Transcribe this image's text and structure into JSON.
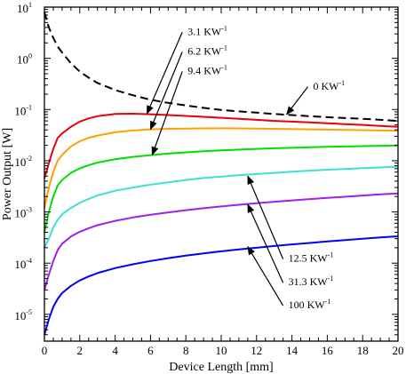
{
  "chart_data": {
    "type": "line",
    "title": "",
    "xlabel": "Device Length [mm]",
    "ylabel": "Power Output [W]",
    "xlim": [
      0,
      20
    ],
    "ylim": [
      3e-06,
      10
    ],
    "yscale": "log",
    "x_ticks": [
      0,
      2,
      4,
      6,
      8,
      10,
      12,
      14,
      16,
      18,
      20
    ],
    "y_ticks": [
      {
        "value": 1e-05,
        "base": "10",
        "exp": "-5"
      },
      {
        "value": 0.0001,
        "base": "10",
        "exp": "-4"
      },
      {
        "value": 0.001,
        "base": "10",
        "exp": "-3"
      },
      {
        "value": 0.01,
        "base": "10",
        "exp": "-2"
      },
      {
        "value": 0.1,
        "base": "10",
        "exp": "-1"
      },
      {
        "value": 1,
        "base": "10",
        "exp": "0"
      },
      {
        "value": 10,
        "base": "10",
        "exp": "1"
      }
    ],
    "grid": false,
    "x": [
      0,
      0.25,
      0.5,
      0.75,
      1,
      1.5,
      2,
      2.5,
      3,
      4,
      5,
      6,
      7,
      8,
      9,
      10,
      11,
      12,
      13,
      14,
      15,
      16,
      17,
      18,
      19,
      20
    ],
    "series": [
      {
        "key": "s0",
        "dash": true,
        "color": "#000000",
        "values": [
          8.0,
          4.0,
          2.5,
          1.7,
          1.3,
          0.8,
          0.55,
          0.42,
          0.33,
          0.24,
          0.19,
          0.155,
          0.135,
          0.12,
          0.108,
          0.098,
          0.092,
          0.087,
          0.082,
          0.078,
          0.074,
          0.071,
          0.068,
          0.066,
          0.063,
          0.06
        ]
      },
      {
        "key": "s1",
        "dash": false,
        "color": "#e8000a",
        "values": [
          0.0045,
          0.009,
          0.017,
          0.028,
          0.034,
          0.046,
          0.058,
          0.067,
          0.074,
          0.082,
          0.083,
          0.081,
          0.078,
          0.075,
          0.072,
          0.069,
          0.066,
          0.063,
          0.06,
          0.058,
          0.056,
          0.054,
          0.052,
          0.05,
          0.048,
          0.046
        ]
      },
      {
        "key": "s2",
        "dash": false,
        "color": "#ffa000",
        "values": [
          0.0012,
          0.003,
          0.006,
          0.01,
          0.013,
          0.019,
          0.024,
          0.028,
          0.031,
          0.036,
          0.039,
          0.041,
          0.042,
          0.0425,
          0.0428,
          0.043,
          0.0428,
          0.0425,
          0.042,
          0.0415,
          0.041,
          0.0405,
          0.04,
          0.0395,
          0.039,
          0.0385
        ]
      },
      {
        "key": "s3",
        "dash": false,
        "color": "#00e000",
        "values": [
          0.0004,
          0.001,
          0.002,
          0.0033,
          0.0042,
          0.0058,
          0.0071,
          0.0082,
          0.0092,
          0.0107,
          0.0119,
          0.0129,
          0.0138,
          0.0146,
          0.0153,
          0.0159,
          0.0165,
          0.017,
          0.0175,
          0.0179,
          0.0183,
          0.0187,
          0.019,
          0.0193,
          0.0196,
          0.0199
        ]
      },
      {
        "key": "s4",
        "dash": false,
        "color": "#40e0d0",
        "values": [
          0.0002,
          0.0003,
          0.0005,
          0.0007,
          0.0009,
          0.0012,
          0.0015,
          0.0018,
          0.0021,
          0.0026,
          0.003,
          0.0034,
          0.0038,
          0.0042,
          0.0046,
          0.0049,
          0.0052,
          0.0055,
          0.0058,
          0.0061,
          0.0064,
          0.0067,
          0.0069,
          0.0072,
          0.0074,
          0.0077
        ]
      },
      {
        "key": "s5",
        "dash": false,
        "color": "#a020f0",
        "values": [
          3e-05,
          6e-05,
          0.00011,
          0.00018,
          0.00024,
          0.00033,
          0.00041,
          0.00048,
          0.00055,
          0.00067,
          0.00078,
          0.00088,
          0.00098,
          0.00108,
          0.00118,
          0.00128,
          0.00138,
          0.00148,
          0.00158,
          0.00168,
          0.00178,
          0.00188,
          0.00198,
          0.00209,
          0.0022,
          0.0023
        ]
      },
      {
        "key": "s6",
        "dash": false,
        "color": "#0000ff",
        "values": [
          4e-06,
          8e-06,
          1.4e-05,
          2e-05,
          2.6e-05,
          3.6e-05,
          4.6e-05,
          5.5e-05,
          6.4e-05,
          8e-05,
          9.5e-05,
          0.00011,
          0.000125,
          0.00014,
          0.000155,
          0.00017,
          0.000185,
          0.0002,
          0.000216,
          0.000232,
          0.000248,
          0.000265,
          0.000282,
          0.0003,
          0.000318,
          0.000335
        ]
      }
    ],
    "annotations": [
      {
        "text": "3.1 KW",
        "exp": "-1",
        "series": "s1",
        "label_x": 8.1,
        "label_y": 3.5,
        "point_x": 5.8,
        "point_y": 0.083
      },
      {
        "text": "6.2 KW",
        "exp": "-1",
        "series": "s2",
        "label_x": 8.1,
        "label_y": 1.45,
        "point_x": 6.0,
        "point_y": 0.041
      },
      {
        "text": "9.4 KW",
        "exp": "-1",
        "series": "s3",
        "label_x": 8.1,
        "label_y": 0.6,
        "point_x": 6.1,
        "point_y": 0.013
      },
      {
        "text": "0 KW",
        "exp": "-1",
        "series": "s0",
        "label_x": 15.2,
        "label_y": 0.3,
        "point_x": 13.7,
        "point_y": 0.08
      },
      {
        "text": "12.5 KW",
        "exp": "-1",
        "series": "s4",
        "label_x": 13.8,
        "label_y": 0.00013,
        "point_x": 11.5,
        "point_y": 0.005
      },
      {
        "text": "31.3 KW",
        "exp": "-1",
        "series": "s5",
        "label_x": 13.8,
        "label_y": 4.5e-05,
        "point_x": 11.5,
        "point_y": 0.0014
      },
      {
        "text": "100 KW",
        "exp": "-1",
        "series": "s6",
        "label_x": 13.8,
        "label_y": 1.6e-05,
        "point_x": 11.5,
        "point_y": 0.00021
      }
    ]
  }
}
